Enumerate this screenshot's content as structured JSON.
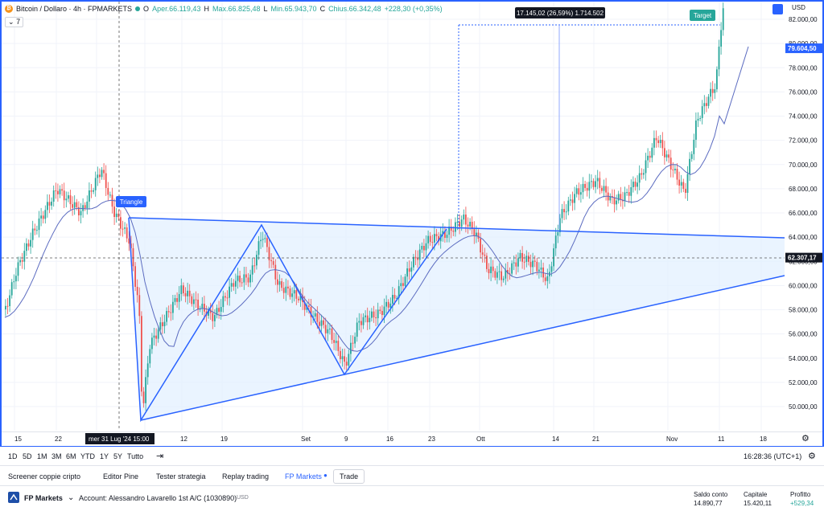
{
  "header": {
    "symbol_title": "Bitcoin / Dollaro · 4h · FPMARKETS",
    "open_label": "O",
    "open_value": "Aper.66.119,43",
    "high_label": "H",
    "high_value": "Max.66.825,48",
    "low_label": "L",
    "low_value": "Min.65.943,70",
    "close_label": "C",
    "close_value": "Chius.66.342,48",
    "change_value": "+228,30 (+0,35%)",
    "indicator_count": "7",
    "currency": "USD"
  },
  "chart_data": {
    "type": "candlestick",
    "pattern": "Triangle",
    "annotations": {
      "triangle_label": "Triangle",
      "target_label": "Target",
      "measure_label": "17.145,02 (26,59%) 1.714.502"
    },
    "ylim": [
      48000,
      83500
    ],
    "y_ticks": [
      "50.000,00",
      "52.000,00",
      "54.000,00",
      "56.000,00",
      "58.000,00",
      "60.000,00",
      "62.000,00",
      "64.000,00",
      "66.000,00",
      "68.000,00",
      "70.000,00",
      "72.000,00",
      "74.000,00",
      "76.000,00",
      "78.000,00",
      "80.000,00",
      "82.000,00"
    ],
    "price_labels": {
      "crosshair_price": "62.307,17",
      "last_price": "79.604,50"
    },
    "x_ticks": [
      "15",
      "22",
      "mer 31 Lug '24",
      "15:00",
      "12",
      "19",
      "Set",
      "9",
      "16",
      "23",
      "Ott",
      "14",
      "21",
      "Nov",
      "11",
      "18"
    ],
    "colors": {
      "up": "#26a69a",
      "down": "#ef5350",
      "pattern": "#2962ff",
      "ma": "#5b6bc0",
      "fill": "#e3f0ff",
      "target": "#26a69a"
    }
  },
  "time_axis": {
    "crosshair_date": "mer 31 Lug '24",
    "crosshair_time": "15:00"
  },
  "toolbar": {
    "ranges": [
      "1D",
      "5D",
      "1M",
      "3M",
      "6M",
      "YTD",
      "1Y",
      "5Y",
      "Tutto"
    ],
    "clock": "16:28:36 (UTC+1)"
  },
  "tabs": {
    "items": [
      "Screener coppie cripto",
      "Editor Pine",
      "Tester strategia",
      "Replay trading",
      "FP Markets",
      "Trade"
    ]
  },
  "broker": {
    "name": "FP Markets",
    "account": "Account: Alessandro Lavarello 1st A/C (1030890)",
    "account_currency": "USD",
    "saldo_label": "Saldo conto",
    "saldo_value": "14.890,77",
    "capitale_label": "Capitale",
    "capitale_value": "15.420,11",
    "profitto_label": "Profitto",
    "profitto_value": "+529,34"
  }
}
